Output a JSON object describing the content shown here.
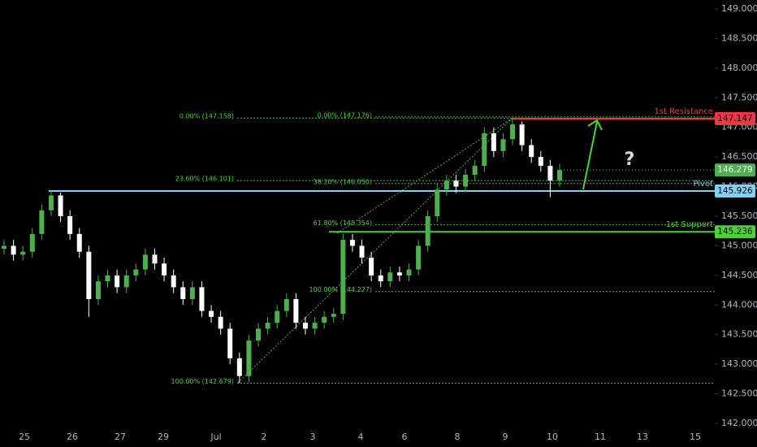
{
  "chart_data": {
    "type": "candlestick",
    "ylim": [
      142,
      149
    ],
    "yticks": [
      {
        "value": 142,
        "label": "142.000"
      },
      {
        "value": 142.5,
        "label": "142.500"
      },
      {
        "value": 143,
        "label": "143.000"
      },
      {
        "value": 143.5,
        "label": "143.500"
      },
      {
        "value": 144,
        "label": "144.000"
      },
      {
        "value": 144.5,
        "label": "144.500"
      },
      {
        "value": 145,
        "label": "145.000"
      },
      {
        "value": 145.5,
        "label": "145.500"
      },
      {
        "value": 146,
        "label": "146.000"
      },
      {
        "value": 146.5,
        "label": "146.500"
      },
      {
        "value": 147,
        "label": "147.000"
      },
      {
        "value": 147.5,
        "label": "147.500"
      },
      {
        "value": 148,
        "label": "148.000"
      },
      {
        "value": 148.5,
        "label": "148.500"
      },
      {
        "value": 149,
        "label": "149.000"
      }
    ],
    "x_labels": [
      "25",
      "26",
      "27",
      "29",
      "Jul",
      "2",
      "3",
      "4",
      "6",
      "8",
      "9",
      "10",
      "11",
      "13",
      "15"
    ],
    "up_color": "#4caf50",
    "down_color": "#ffffff",
    "candles": {
      "open": [
        144.95,
        145.0,
        144.85,
        144.9,
        145.2,
        145.6,
        145.85,
        145.5,
        145.2,
        144.9,
        144.1,
        144.4,
        144.5,
        144.3,
        144.5,
        144.6,
        144.85,
        144.7,
        144.5,
        144.3,
        144.1,
        144.3,
        143.9,
        143.8,
        143.6,
        143.1,
        142.8,
        143.4,
        143.6,
        143.7,
        143.9,
        144.1,
        143.7,
        143.6,
        143.7,
        143.8,
        143.85,
        145.1,
        145.0,
        144.8,
        144.5,
        144.4,
        144.55,
        144.5,
        144.6,
        145.0,
        145.5,
        145.95,
        146.1,
        146.0,
        146.2,
        146.35,
        146.9,
        146.6,
        146.8,
        147.05,
        146.7,
        146.5,
        146.35,
        146.1
      ],
      "high": [
        145.1,
        145.1,
        145.0,
        145.3,
        145.7,
        145.93,
        145.9,
        145.6,
        145.3,
        145.0,
        144.5,
        144.6,
        144.6,
        144.6,
        144.7,
        144.95,
        144.95,
        144.8,
        144.6,
        144.4,
        144.4,
        144.4,
        144.0,
        143.9,
        143.7,
        143.2,
        143.5,
        143.7,
        143.8,
        144.0,
        144.2,
        144.2,
        143.8,
        143.8,
        143.9,
        143.95,
        145.2,
        145.2,
        145.1,
        144.9,
        144.6,
        144.65,
        144.65,
        144.7,
        145.1,
        145.6,
        146.05,
        146.2,
        146.2,
        146.3,
        146.45,
        147.0,
        147.0,
        146.9,
        147.16,
        147.1,
        146.8,
        146.6,
        146.45,
        146.38
      ],
      "low": [
        144.85,
        144.75,
        144.75,
        144.8,
        145.1,
        145.5,
        145.4,
        145.1,
        144.8,
        143.8,
        144.0,
        144.3,
        144.2,
        144.2,
        144.4,
        144.5,
        144.6,
        144.4,
        144.2,
        144.0,
        144.0,
        143.8,
        143.7,
        143.5,
        143.0,
        142.68,
        142.7,
        143.3,
        143.5,
        143.6,
        143.8,
        143.6,
        143.5,
        143.5,
        143.6,
        143.7,
        143.75,
        144.9,
        144.7,
        144.4,
        144.3,
        144.3,
        144.4,
        144.4,
        144.5,
        144.9,
        145.4,
        145.85,
        145.9,
        145.9,
        146.1,
        146.25,
        146.5,
        146.5,
        146.7,
        146.6,
        146.4,
        146.25,
        145.82,
        146.0
      ],
      "close": [
        145.0,
        144.85,
        144.9,
        145.2,
        145.6,
        145.85,
        145.5,
        145.2,
        144.9,
        144.1,
        144.4,
        144.5,
        144.3,
        144.5,
        144.6,
        144.85,
        144.7,
        144.5,
        144.3,
        144.1,
        144.3,
        143.9,
        143.8,
        143.6,
        143.1,
        142.8,
        143.4,
        143.6,
        143.7,
        143.9,
        144.1,
        143.7,
        143.6,
        143.7,
        143.8,
        143.85,
        145.1,
        145.0,
        144.8,
        144.5,
        144.4,
        144.55,
        144.5,
        144.6,
        145.0,
        145.5,
        145.95,
        146.1,
        146.0,
        146.2,
        146.35,
        146.9,
        146.6,
        146.8,
        147.05,
        146.7,
        146.5,
        146.35,
        146.1,
        146.28
      ]
    },
    "last_price": 146.279,
    "levels": [
      {
        "name": "1st Resistance",
        "value": 147.147,
        "color": "#f23645"
      },
      {
        "name": "Pivot",
        "value": 145.926,
        "color": "#7fd3f0"
      },
      {
        "name": "1st Support",
        "value": 145.236,
        "color": "#4cd137"
      }
    ],
    "fib_levels": [
      {
        "label": "0.00% (147.158)",
        "value": 147.158
      },
      {
        "label": "23.60% (146.101)",
        "value": 146.101
      },
      {
        "label": "100.00% (142.679)",
        "value": 142.679
      },
      {
        "label": "0.00% (147.176)",
        "value": 147.176
      },
      {
        "label": "38.20% (146.050)",
        "value": 146.05
      },
      {
        "label": "61.80% (145.354)",
        "value": 145.354
      },
      {
        "label": "100.00% (144.227)",
        "value": 144.227
      }
    ],
    "annotation": "?"
  }
}
